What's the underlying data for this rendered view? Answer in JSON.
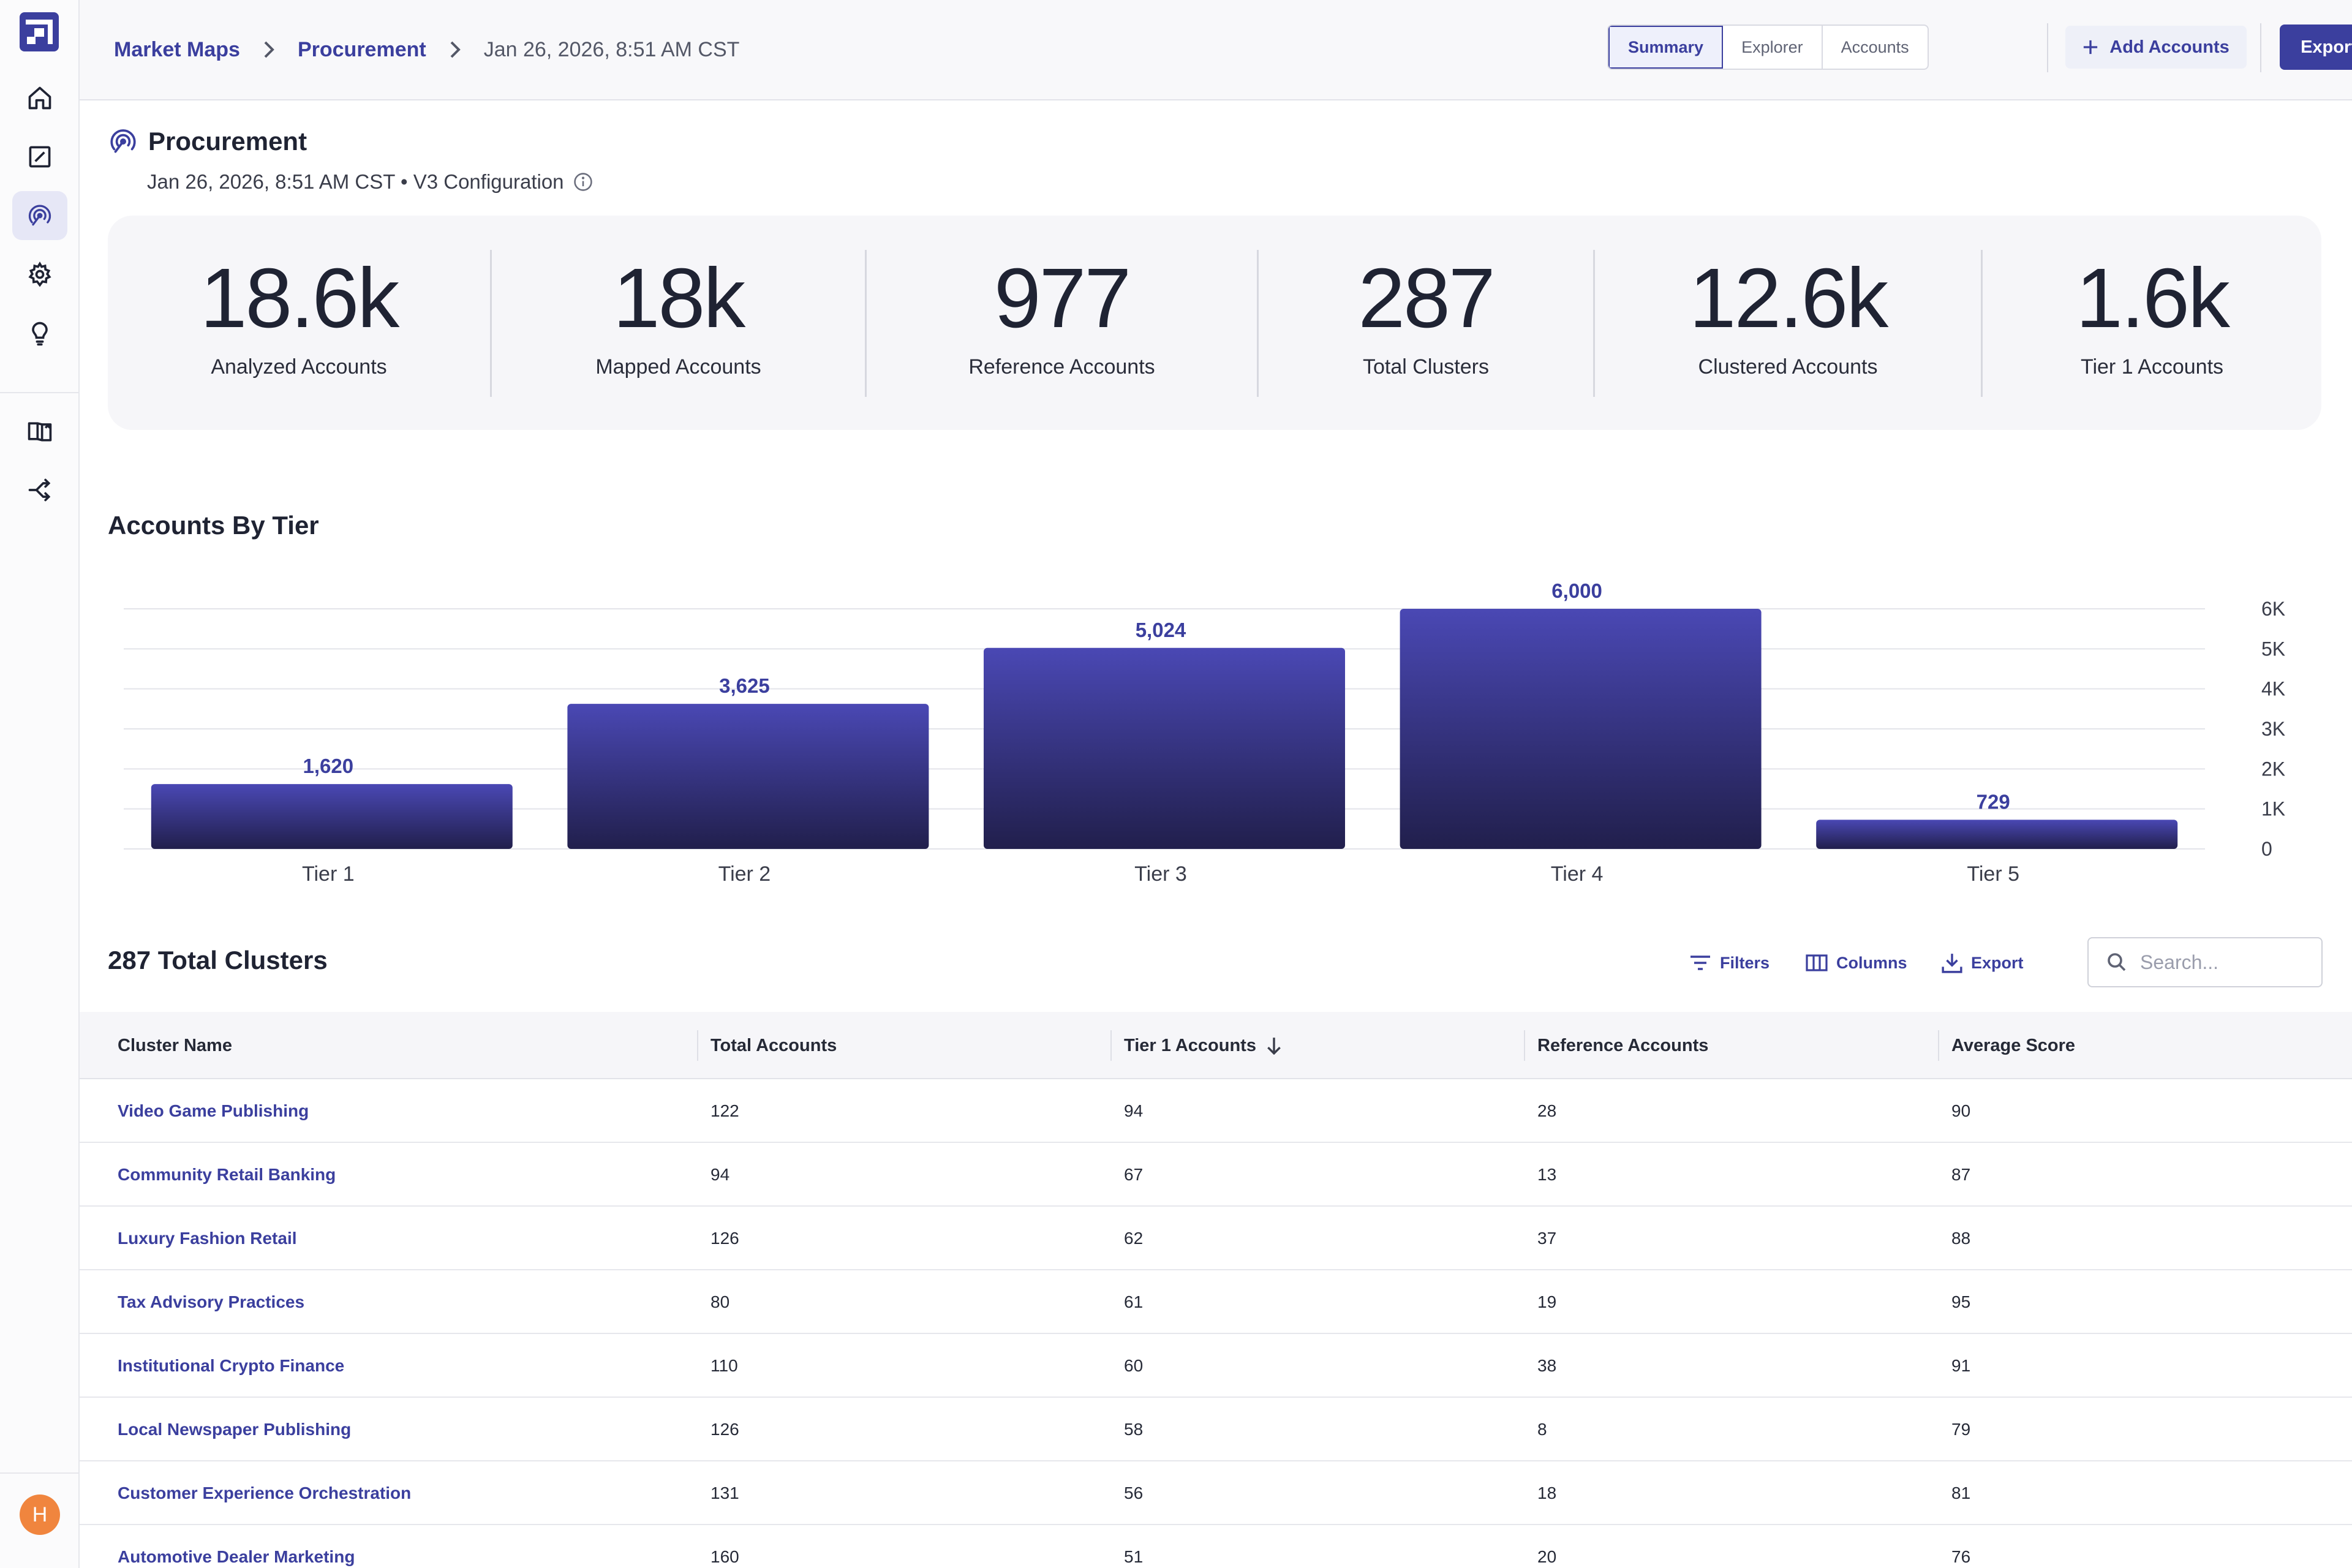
{
  "sidebar": {
    "items": [
      {
        "name": "home-icon"
      },
      {
        "name": "edit-square-icon"
      },
      {
        "name": "market-map-icon",
        "active": true
      },
      {
        "name": "gear-icon"
      },
      {
        "name": "lightbulb-icon"
      },
      {
        "name": "book-icon"
      },
      {
        "name": "split-arrows-icon"
      }
    ],
    "avatar_initial": "H"
  },
  "header": {
    "breadcrumb": [
      "Market Maps",
      "Procurement",
      "Jan 26, 2026, 8:51 AM CST"
    ],
    "tabs": [
      "Summary",
      "Explorer",
      "Accounts"
    ],
    "active_tab": "Summary",
    "add_accounts_label": "Add Accounts",
    "export_label": "Export"
  },
  "page": {
    "title": "Procurement",
    "subtitle": "Jan 26, 2026, 8:51 AM CST • V3 Configuration"
  },
  "stats": [
    {
      "value": "18.6k",
      "label": "Analyzed Accounts"
    },
    {
      "value": "18k",
      "label": "Mapped Accounts"
    },
    {
      "value": "977",
      "label": "Reference Accounts"
    },
    {
      "value": "287",
      "label": "Total Clusters"
    },
    {
      "value": "12.6k",
      "label": "Clustered Accounts"
    },
    {
      "value": "1.6k",
      "label": "Tier 1 Accounts"
    }
  ],
  "chart_data": {
    "type": "bar",
    "title": "Accounts By Tier",
    "categories": [
      "Tier 1",
      "Tier 2",
      "Tier 3",
      "Tier 4",
      "Tier 5"
    ],
    "values": [
      1620,
      3625,
      5024,
      6000,
      729
    ],
    "value_labels": [
      "1,620",
      "3,625",
      "5,024",
      "6,000",
      "729"
    ],
    "y_ticks": [
      "0",
      "1K",
      "2K",
      "3K",
      "4K",
      "5K",
      "6K"
    ],
    "ylim": [
      0,
      6000
    ],
    "y_axis_position": "right",
    "grid": true,
    "bar_color": "#4a48b4"
  },
  "table": {
    "title": "287 Total Clusters",
    "tools": {
      "filters": "Filters",
      "columns": "Columns",
      "export": "Export"
    },
    "search_placeholder": "Search...",
    "columns": [
      "Cluster Name",
      "Total Accounts",
      "Tier 1 Accounts",
      "Reference Accounts",
      "Average Score"
    ],
    "sort_column": "Tier 1 Accounts",
    "sort_direction": "descending",
    "rows": [
      [
        "Video Game Publishing",
        "122",
        "94",
        "28",
        "90"
      ],
      [
        "Community Retail Banking",
        "94",
        "67",
        "13",
        "87"
      ],
      [
        "Luxury Fashion Retail",
        "126",
        "62",
        "37",
        "88"
      ],
      [
        "Tax Advisory Practices",
        "80",
        "61",
        "19",
        "95"
      ],
      [
        "Institutional Crypto Finance",
        "110",
        "60",
        "38",
        "91"
      ],
      [
        "Local Newspaper Publishing",
        "126",
        "58",
        "8",
        "79"
      ],
      [
        "Customer Experience Orchestration",
        "131",
        "56",
        "18",
        "81"
      ],
      [
        "Automotive Dealer Marketing",
        "160",
        "51",
        "20",
        "76"
      ]
    ]
  },
  "colors": {
    "accent": "#3b3f9e",
    "avatar": "#f0853e"
  }
}
